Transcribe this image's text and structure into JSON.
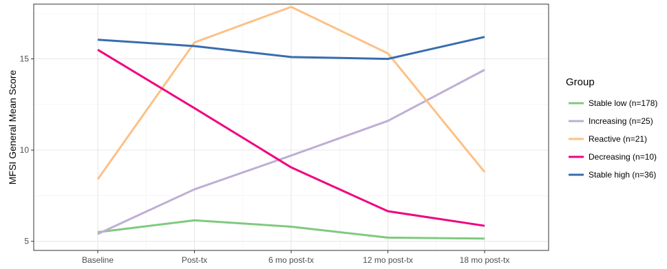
{
  "chart_data": {
    "type": "line",
    "title": "",
    "xlabel": "",
    "ylabel": "MFSI General Mean Score",
    "categories": [
      "Baseline",
      "Post-tx",
      "6 mo post-tx",
      "12 mo post-tx",
      "18 mo post-tx"
    ],
    "y_ticks": [
      5,
      10,
      15
    ],
    "ylim": [
      4.5,
      18.0
    ],
    "grid": true,
    "legend": {
      "title": "Group",
      "position": "right"
    },
    "series": [
      {
        "name": "Stable low (n=178)",
        "color": "#7fc97f",
        "values": [
          5.5,
          6.15,
          5.8,
          5.2,
          5.15
        ]
      },
      {
        "name": "Increasing (n=25)",
        "color": "#beaed4",
        "values": [
          5.4,
          7.85,
          9.7,
          11.6,
          14.4
        ]
      },
      {
        "name": "Reactive (n=21)",
        "color": "#fdc086",
        "values": [
          8.4,
          15.9,
          17.85,
          15.3,
          8.8
        ]
      },
      {
        "name": "Decreasing (n=10)",
        "color": "#f0027f",
        "values": [
          15.5,
          12.3,
          9.05,
          6.65,
          5.85
        ]
      },
      {
        "name": "Stable high (n=36)",
        "color": "#386cb0",
        "values": [
          16.05,
          15.7,
          15.1,
          15.0,
          16.2
        ]
      }
    ]
  }
}
